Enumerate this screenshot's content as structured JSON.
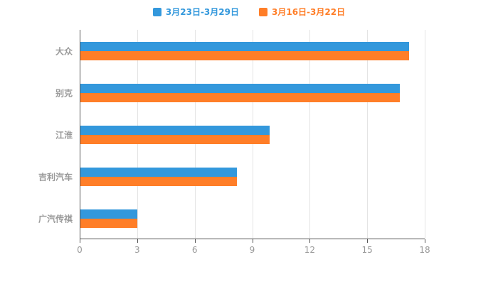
{
  "chart_data": {
    "type": "bar",
    "orientation": "horizontal",
    "title": "",
    "xlabel": "",
    "ylabel": "",
    "categories": [
      "大众",
      "别克",
      "江淮",
      "吉利汽车",
      "广汽传祺"
    ],
    "series": [
      {
        "name": "3月23日-3月29日",
        "color": "#3398DC",
        "values": [
          17.2,
          16.7,
          9.9,
          8.2,
          3.0
        ]
      },
      {
        "name": "3月16日-3月22日",
        "color": "#FF7E28",
        "values": [
          17.2,
          16.7,
          9.9,
          8.2,
          3.0
        ]
      }
    ],
    "xlim": [
      0,
      18
    ],
    "xticks": [
      0,
      3,
      6,
      9,
      12,
      15,
      18
    ],
    "grid": true,
    "legend_position": "top",
    "colors": {
      "axis": "#555555",
      "gridline": "#e4e4e4",
      "tick_label": "#999999"
    }
  }
}
